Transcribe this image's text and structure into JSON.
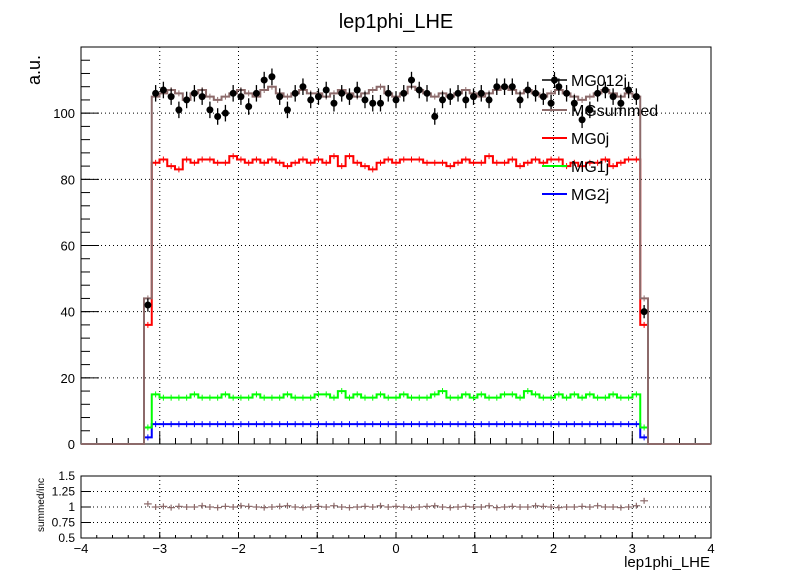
{
  "chart_data": {
    "type": "line",
    "title": "lep1phi_LHE",
    "xlabel": "lep1phi_LHE",
    "ylabel": "a.u.",
    "ratio_ylabel": "summed/inc",
    "xlim": [
      -4,
      4
    ],
    "ylim": [
      0,
      120
    ],
    "ratio_ylim": [
      0.5,
      1.5
    ],
    "x_ticks": [
      "−4",
      "−3",
      "−2",
      "−1",
      "0",
      "1",
      "2",
      "3",
      "4"
    ],
    "y_ticks": [
      "0",
      "20",
      "40",
      "60",
      "80",
      "100"
    ],
    "ratio_ticks": [
      "0.5",
      "0.75",
      "1",
      "1.25",
      "1.5"
    ],
    "grid": true,
    "legend_position": "top-right",
    "bin_range": [
      -3.2,
      3.2
    ],
    "series": [
      {
        "name": "MG012j",
        "style": "points",
        "color": "#000000",
        "values": [
          42,
          106,
          107,
          105,
          101,
          104,
          106,
          105,
          101,
          99,
          100,
          106,
          105,
          102,
          106,
          110,
          111,
          105,
          101,
          106,
          108,
          104,
          105,
          107,
          103,
          106,
          105,
          107,
          104,
          103,
          103,
          106,
          104,
          106,
          110,
          107,
          106,
          99,
          104,
          105,
          106,
          104,
          105,
          106,
          104,
          108,
          108,
          108,
          104,
          107,
          106,
          105,
          103,
          108,
          106,
          103,
          98,
          101,
          106,
          107,
          105,
          103,
          107,
          105,
          40
        ],
        "errors": [
          2,
          2.5,
          2.5,
          2.5,
          2.5,
          2.5,
          2.5,
          2.5,
          2.5,
          2.5,
          2.5,
          2.5,
          2.5,
          2.5,
          2.5,
          2.5,
          2.5,
          2.5,
          2.5,
          2.5,
          2.5,
          2.5,
          2.5,
          2.5,
          2.5,
          2.5,
          2.5,
          2.5,
          2.5,
          2.5,
          2.5,
          2.5,
          2.5,
          2.5,
          2.5,
          2.5,
          2.5,
          2.5,
          2.5,
          2.5,
          2.5,
          2.5,
          2.5,
          2.5,
          2.5,
          2.5,
          2.5,
          2.5,
          2.5,
          2.5,
          2.5,
          2.5,
          2.5,
          2.5,
          2.5,
          2.5,
          2.5,
          2.5,
          2.5,
          2.5,
          2.5,
          2.5,
          2.5,
          2.5,
          2
        ]
      },
      {
        "name": "MGsummed",
        "style": "step",
        "color": "#8c6a6a",
        "values": [
          44,
          105,
          106,
          107,
          106,
          104,
          106,
          107,
          105,
          104,
          105,
          106,
          107,
          106,
          105,
          107,
          108,
          106,
          105,
          106,
          107,
          106,
          106,
          105,
          106,
          107,
          106,
          105,
          106,
          107,
          108,
          106,
          105,
          106,
          108,
          107,
          106,
          105,
          106,
          105,
          106,
          107,
          106,
          105,
          106,
          107,
          108,
          107,
          106,
          107,
          106,
          105,
          106,
          107,
          106,
          105,
          104,
          105,
          106,
          107,
          106,
          105,
          106,
          105,
          44
        ]
      },
      {
        "name": "MG0j",
        "style": "step",
        "color": "#ff0000",
        "values": [
          36,
          85,
          86,
          84,
          83,
          86,
          85,
          86,
          86,
          85,
          85,
          87,
          86,
          85,
          86,
          85,
          86,
          85,
          84,
          85,
          86,
          85,
          86,
          85,
          87,
          84,
          87,
          85,
          84,
          83,
          85,
          86,
          85,
          86,
          86,
          86,
          85,
          85,
          85,
          84,
          85,
          86,
          85,
          85,
          87,
          85,
          85,
          86,
          84,
          85,
          86,
          85,
          86,
          86,
          84,
          85,
          84,
          85,
          85,
          86,
          84,
          85,
          86,
          86,
          36
        ]
      },
      {
        "name": "MG1j",
        "style": "step",
        "color": "#00ff00",
        "values": [
          5,
          15,
          14,
          14,
          14,
          14,
          15,
          14,
          14,
          14,
          15,
          14,
          14,
          14,
          15,
          14,
          14,
          14,
          15,
          14,
          14,
          14,
          15,
          15,
          14,
          16,
          14,
          15,
          14,
          14,
          15,
          14,
          14,
          15,
          14,
          14,
          14,
          15,
          16,
          14,
          14,
          15,
          14,
          15,
          14,
          14,
          15,
          15,
          14,
          16,
          15,
          14,
          14,
          15,
          14,
          15,
          14,
          15,
          14,
          14,
          15,
          14,
          14,
          15,
          5
        ]
      },
      {
        "name": "MG2j",
        "style": "step",
        "color": "#0000ff",
        "values": [
          2,
          6,
          6,
          6,
          6,
          6,
          6,
          6,
          6,
          6,
          6,
          6,
          6,
          6,
          6,
          6,
          6,
          6,
          6,
          6,
          6,
          6,
          6,
          6,
          6,
          6,
          6,
          6,
          6,
          6,
          6,
          6,
          6,
          6,
          6,
          6,
          6,
          6,
          6,
          6,
          6,
          6,
          6,
          6,
          6,
          6,
          6,
          6,
          6,
          6,
          6,
          6,
          6,
          6,
          6,
          6,
          6,
          6,
          6,
          6,
          6,
          6,
          6,
          6,
          2
        ]
      }
    ],
    "ratio": {
      "name": "summed/inc",
      "color": "#8c6a6a",
      "values": [
        1.05,
        1.0,
        1.01,
        0.99,
        1.01,
        1.0,
        1.0,
        1.02,
        1.0,
        0.99,
        1.01,
        1.0,
        1.02,
        1.01,
        1.0,
        0.99,
        1.0,
        1.01,
        1.02,
        1.0,
        0.99,
        1.0,
        1.01,
        1.0,
        1.02,
        1.0,
        0.99,
        1.0,
        1.01,
        1.0,
        1.02,
        1.0,
        1.01,
        1.0,
        0.99,
        1.0,
        1.01,
        1.02,
        1.0,
        0.99,
        1.0,
        1.01,
        1.0,
        1.0,
        1.02,
        0.99,
        1.0,
        1.01,
        1.0,
        1.0,
        1.02,
        1.01,
        1.0,
        0.99,
        1.0,
        1.0,
        1.01,
        1.0,
        1.02,
        1.0,
        1.0,
        0.99,
        1.0,
        1.02,
        1.1
      ]
    }
  }
}
